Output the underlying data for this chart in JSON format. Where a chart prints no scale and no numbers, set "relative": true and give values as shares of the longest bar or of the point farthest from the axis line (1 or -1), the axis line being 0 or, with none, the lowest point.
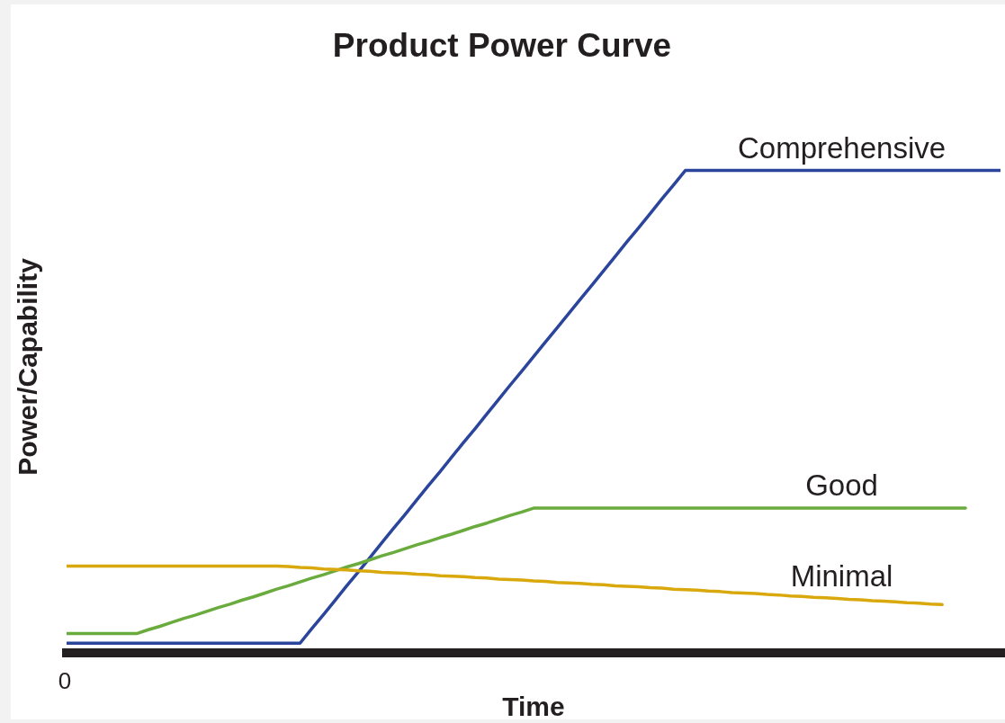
{
  "chart_data": {
    "type": "line",
    "title": "Product Power Curve",
    "xlabel": "Time",
    "ylabel": "Power/Capability",
    "relative": true,
    "annotations": [
      "0"
    ],
    "legend": false,
    "grid": false,
    "marker": "none",
    "line_style": "solid",
    "categories": [
      null,
      null,
      null,
      null,
      null,
      null,
      null,
      null,
      null,
      null,
      null,
      null,
      null,
      null,
      null,
      null,
      null,
      null,
      null,
      null,
      null,
      null,
      null,
      null,
      null,
      null,
      null,
      null,
      null,
      null,
      null,
      null,
      null,
      null,
      null,
      null,
      null,
      null,
      null,
      null,
      null,
      null,
      null,
      null,
      null,
      null,
      null,
      null,
      null,
      null,
      null,
      null,
      null,
      null,
      null,
      null,
      null,
      null,
      null,
      null,
      null,
      null,
      null,
      null,
      null,
      null,
      null,
      null,
      null,
      null,
      null,
      null,
      null,
      null,
      null,
      null,
      null,
      null,
      null,
      null,
      null
    ],
    "series": [
      {
        "name": "Comprehensive",
        "color": "#2b459c",
        "values": [
          0.02,
          0.02,
          0.02,
          0.02,
          0.02,
          0.02,
          0.02,
          0.02,
          0.02,
          0.02,
          0.02,
          0.02,
          0.02,
          0.02,
          0.02,
          0.02,
          0.02,
          0.02,
          0.02,
          0.02,
          0.02,
          0.05,
          0.079,
          0.109,
          0.139,
          0.168,
          0.198,
          0.228,
          0.258,
          0.287,
          0.317,
          0.347,
          0.376,
          0.406,
          0.436,
          0.465,
          0.495,
          0.525,
          0.555,
          0.584,
          0.614,
          0.644,
          0.673,
          0.703,
          0.733,
          0.762,
          0.792,
          0.822,
          0.852,
          0.881,
          0.911,
          0.941,
          0.97,
          1,
          1,
          1,
          1,
          1,
          1,
          1,
          1,
          1,
          1,
          1,
          1,
          1,
          1,
          1,
          1,
          1,
          1,
          1,
          1,
          1,
          1,
          1,
          1,
          1,
          1,
          1,
          1
        ]
      },
      {
        "name": "Good",
        "color": "#6aab3e",
        "values": [
          0.04,
          0.04,
          0.04,
          0.04,
          0.04,
          0.04,
          0.04,
          0.048,
          0.055,
          0.063,
          0.071,
          0.078,
          0.086,
          0.094,
          0.101,
          0.109,
          0.116,
          0.124,
          0.132,
          0.139,
          0.147,
          0.155,
          0.162,
          0.17,
          0.178,
          0.185,
          0.193,
          0.201,
          0.208,
          0.216,
          0.224,
          0.231,
          0.239,
          0.246,
          0.254,
          0.262,
          0.269,
          0.277,
          0.285,
          0.292,
          0.3,
          0.3,
          0.3,
          0.3,
          0.3,
          0.3,
          0.3,
          0.3,
          0.3,
          0.3,
          0.3,
          0.3,
          0.3,
          0.3,
          0.3,
          0.3,
          0.3,
          0.3,
          0.3,
          0.3,
          0.3,
          0.3,
          0.3,
          0.3,
          0.3,
          0.3,
          0.3,
          0.3,
          0.3,
          0.3,
          0.3,
          0.3,
          0.3,
          0.3,
          0.3,
          0.3,
          0.3,
          0.3,
          null,
          null,
          null
        ]
      },
      {
        "name": "Minimal",
        "color": "#d8a80c",
        "values": [
          0.18,
          0.18,
          0.18,
          0.18,
          0.18,
          0.18,
          0.18,
          0.18,
          0.18,
          0.18,
          0.18,
          0.18,
          0.18,
          0.18,
          0.18,
          0.18,
          0.18,
          0.18,
          0.18,
          0.179,
          0.177,
          0.176,
          0.174,
          0.173,
          0.172,
          0.17,
          0.169,
          0.167,
          0.166,
          0.165,
          0.163,
          0.162,
          0.16,
          0.159,
          0.158,
          0.156,
          0.155,
          0.153,
          0.152,
          0.151,
          0.149,
          0.148,
          0.146,
          0.145,
          0.144,
          0.142,
          0.141,
          0.139,
          0.138,
          0.137,
          0.135,
          0.134,
          0.132,
          0.131,
          0.13,
          0.128,
          0.127,
          0.125,
          0.124,
          0.123,
          0.121,
          0.12,
          0.118,
          0.117,
          0.115,
          0.114,
          0.113,
          0.111,
          0.11,
          0.108,
          0.107,
          0.106,
          0.104,
          0.103,
          0.101,
          0.1,
          null,
          null,
          null,
          null,
          null
        ]
      }
    ]
  }
}
